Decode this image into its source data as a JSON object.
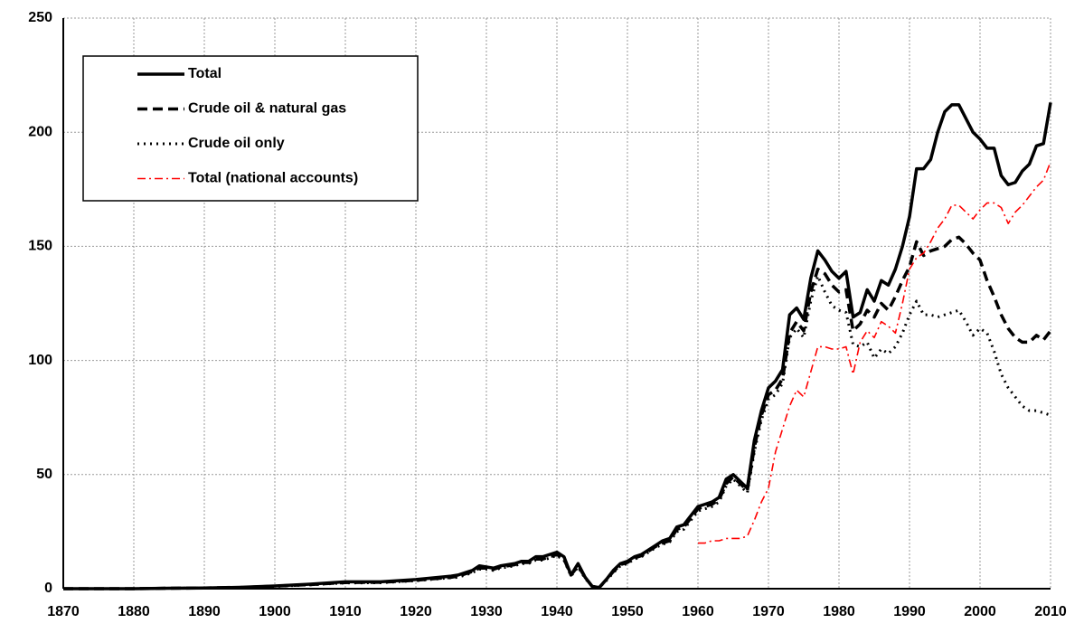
{
  "chart_data": {
    "type": "line",
    "x": [
      1870,
      1875,
      1880,
      1885,
      1890,
      1895,
      1900,
      1905,
      1910,
      1915,
      1920,
      1925,
      1926,
      1927,
      1928,
      1929,
      1930,
      1931,
      1932,
      1933,
      1934,
      1935,
      1936,
      1937,
      1938,
      1939,
      1940,
      1941,
      1942,
      1943,
      1944,
      1945,
      1946,
      1947,
      1948,
      1949,
      1950,
      1951,
      1952,
      1953,
      1954,
      1955,
      1956,
      1957,
      1958,
      1959,
      1960,
      1961,
      1962,
      1963,
      1964,
      1965,
      1966,
      1967,
      1968,
      1969,
      1970,
      1971,
      1972,
      1973,
      1974,
      1975,
      1976,
      1977,
      1978,
      1979,
      1980,
      1981,
      1982,
      1983,
      1984,
      1985,
      1986,
      1987,
      1988,
      1989,
      1990,
      1991,
      1992,
      1993,
      1994,
      1995,
      1996,
      1997,
      1998,
      1999,
      2000,
      2001,
      2002,
      2003,
      2004,
      2005,
      2006,
      2007,
      2008,
      2009,
      2010
    ],
    "series": [
      {
        "name": "Total",
        "color": "#000000",
        "dash": "solid",
        "values": [
          0,
          0,
          0,
          0.2,
          0.3,
          0.6,
          1.2,
          2,
          3,
          3,
          4,
          5.5,
          6,
          7,
          8,
          10,
          9.5,
          9,
          10,
          10.5,
          11,
          12,
          12,
          14,
          14,
          15,
          16,
          14,
          6,
          11,
          5,
          1,
          0.5,
          4,
          8,
          11,
          12,
          14,
          15,
          17,
          19,
          21,
          22,
          27,
          28,
          32,
          36,
          37,
          38,
          40,
          48,
          50,
          47,
          44,
          65,
          78,
          88,
          91,
          96,
          120,
          123,
          118,
          136,
          148,
          144,
          139,
          136,
          139,
          119,
          121,
          131,
          126,
          135,
          133,
          140,
          150,
          163,
          184,
          184,
          188,
          200,
          209,
          212,
          212,
          206,
          200,
          197,
          193,
          193,
          181,
          177,
          178,
          183,
          186,
          194,
          195,
          213
        ]
      },
      {
        "name": "Crude oil & natural gas",
        "color": "#000000",
        "dash": "dashed",
        "values": [
          0,
          0,
          0,
          0.2,
          0.3,
          0.5,
          1.1,
          1.8,
          2.7,
          2.8,
          3.7,
          5,
          5.5,
          6.5,
          7.5,
          9,
          9,
          8.5,
          9.5,
          10,
          10.5,
          11.5,
          11.5,
          13,
          13,
          14,
          15,
          13,
          6,
          10,
          5,
          1,
          0.5,
          4,
          7.5,
          10.5,
          11.5,
          13.5,
          14.5,
          16.5,
          18.5,
          20,
          21,
          26,
          27,
          31,
          35,
          36,
          37,
          39,
          46,
          49,
          46,
          43,
          62,
          76,
          85,
          87,
          92,
          112,
          117,
          113,
          130,
          140,
          138,
          133,
          130,
          131,
          113,
          116,
          122,
          119,
          125,
          122,
          128,
          135,
          141,
          152,
          146,
          148,
          149,
          150,
          153,
          154,
          151,
          147,
          144,
          135,
          128,
          120,
          114,
          110,
          108,
          108,
          111,
          109,
          113
        ]
      },
      {
        "name": "Crude oil only",
        "color": "#000000",
        "dash": "dotted",
        "values": [
          0,
          0,
          0,
          0.2,
          0.3,
          0.5,
          1,
          1.7,
          2.5,
          2.6,
          3.5,
          4.8,
          5,
          6,
          7,
          8.5,
          8.5,
          8,
          9,
          9.5,
          10,
          11,
          11,
          12.5,
          12.5,
          13.5,
          14.5,
          12.5,
          5.5,
          9.5,
          4.5,
          1,
          0.5,
          3.5,
          7,
          10,
          11,
          13,
          14,
          16,
          18,
          19.5,
          20.5,
          25,
          26,
          30,
          34,
          35,
          36,
          38,
          45,
          48,
          45,
          42,
          60,
          74,
          83,
          85,
          90,
          110,
          114,
          110,
          126,
          137,
          130,
          124,
          122,
          121,
          107,
          106,
          108,
          101,
          105,
          103,
          106,
          112,
          120,
          126,
          120,
          120,
          119,
          120,
          121,
          122,
          117,
          111,
          114,
          112,
          104,
          94,
          88,
          84,
          80,
          78,
          78,
          77,
          76
        ]
      },
      {
        "name": "Total (national accounts)",
        "color": "#ff0000",
        "dash": "dashdot",
        "values": [
          null,
          null,
          null,
          null,
          null,
          null,
          null,
          null,
          null,
          null,
          null,
          null,
          null,
          null,
          null,
          null,
          null,
          null,
          null,
          null,
          null,
          null,
          null,
          null,
          null,
          null,
          null,
          null,
          null,
          null,
          null,
          null,
          null,
          null,
          null,
          null,
          null,
          null,
          null,
          null,
          null,
          null,
          null,
          null,
          null,
          null,
          20,
          20,
          21,
          21,
          22,
          22,
          22,
          23,
          30,
          38,
          44,
          60,
          70,
          80,
          87,
          84,
          95,
          106,
          106,
          105,
          105,
          106,
          94,
          108,
          113,
          110,
          117,
          115,
          112,
          125,
          140,
          145,
          147,
          152,
          158,
          162,
          168,
          168,
          165,
          162,
          166,
          169,
          169,
          167,
          160,
          165,
          168,
          172,
          176,
          179,
          187
        ]
      }
    ],
    "xlim": [
      1870,
      2010
    ],
    "ylim": [
      0,
      250
    ],
    "xticks": [
      1870,
      1880,
      1890,
      1900,
      1910,
      1920,
      1930,
      1940,
      1950,
      1960,
      1970,
      1980,
      1990,
      2000,
      2010
    ],
    "yticks": [
      0,
      50,
      100,
      150,
      200,
      250
    ],
    "grid": true,
    "legend": "upper left"
  }
}
